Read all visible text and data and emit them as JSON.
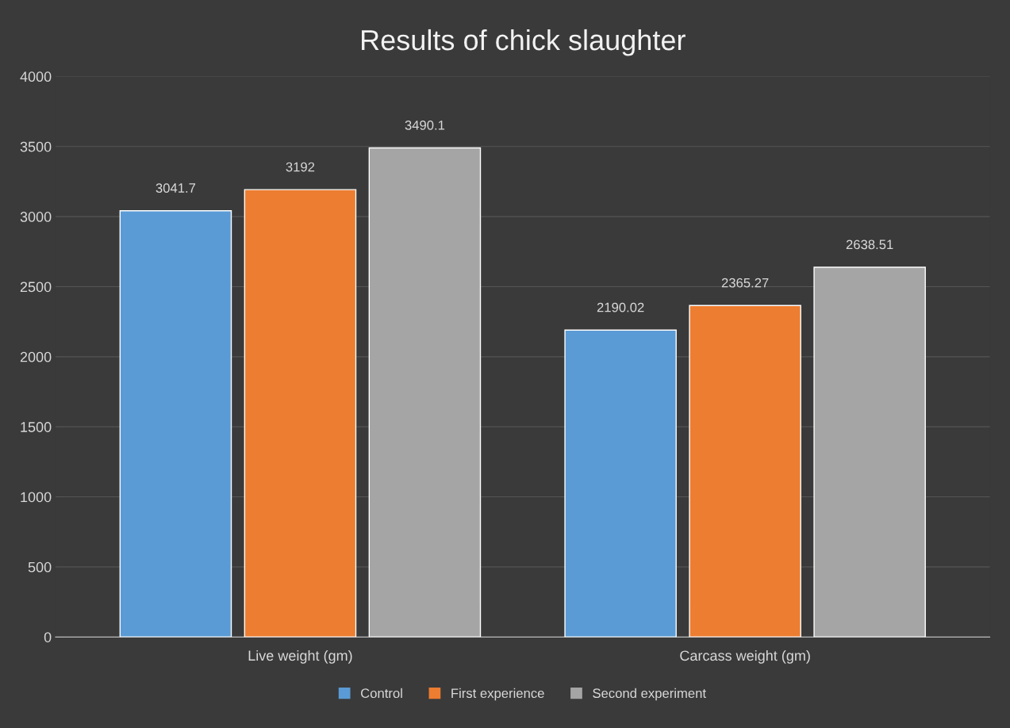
{
  "chart_data": {
    "type": "bar",
    "title": "Results of chick slaughter",
    "categories": [
      "Live weight (gm)",
      "Carcass weight (gm)"
    ],
    "series": [
      {
        "name": "Control",
        "color": "#5b9bd5",
        "values": [
          3041.7,
          2190.02
        ]
      },
      {
        "name": "First experience",
        "color": "#ed7d31",
        "values": [
          3192,
          2365.27
        ]
      },
      {
        "name": "Second experiment",
        "color": "#a5a5a5",
        "values": [
          3490.1,
          2638.51
        ]
      }
    ],
    "ylim": [
      0,
      4000
    ],
    "yticks": [
      0,
      500,
      1000,
      1500,
      2000,
      2500,
      3000,
      3500,
      4000
    ],
    "grid": "y",
    "legend": "bottom",
    "data_labels": true
  }
}
